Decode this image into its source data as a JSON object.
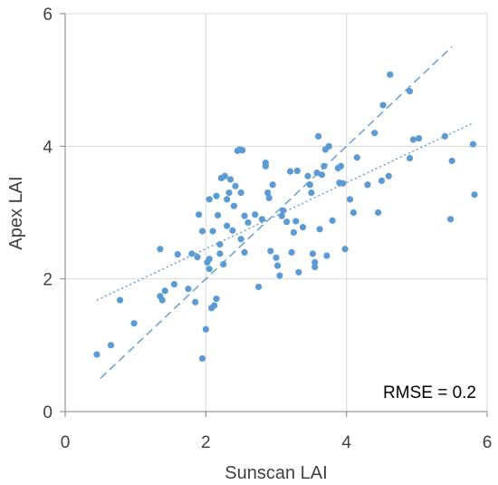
{
  "chart_data": {
    "type": "scatter",
    "xlabel": "Sunscan LAI",
    "ylabel": "Apex LAI",
    "xlim": [
      0,
      6
    ],
    "ylim": [
      0,
      6
    ],
    "xticks": [
      "0",
      "2",
      "4",
      "6"
    ],
    "yticks": [
      "0",
      "2",
      "4",
      "6"
    ],
    "grid": "vertical and horizontal gridlines",
    "annotation": "RMSE = 0.2",
    "colors": {
      "points": "#5b9bd5",
      "grid": "#d9d9d9",
      "axis": "#808080"
    },
    "lines": [
      {
        "style": "dashed",
        "x": [
          0.5,
          5.5
        ],
        "y": [
          0.5,
          5.5
        ]
      },
      {
        "style": "dotted",
        "x": [
          0.45,
          5.8
        ],
        "y": [
          1.68,
          4.35
        ]
      }
    ],
    "points": [
      [
        0.45,
        0.86
      ],
      [
        0.65,
        1.0
      ],
      [
        0.78,
        1.68
      ],
      [
        0.98,
        1.33
      ],
      [
        1.35,
        2.45
      ],
      [
        1.35,
        1.74
      ],
      [
        1.38,
        1.68
      ],
      [
        1.42,
        1.82
      ],
      [
        1.55,
        1.92
      ],
      [
        1.6,
        2.37
      ],
      [
        1.75,
        1.85
      ],
      [
        1.8,
        2.38
      ],
      [
        1.85,
        1.65
      ],
      [
        1.88,
        2.33
      ],
      [
        1.9,
        2.97
      ],
      [
        1.95,
        0.8
      ],
      [
        1.95,
        2.72
      ],
      [
        2.0,
        1.24
      ],
      [
        2.02,
        2.25
      ],
      [
        2.05,
        2.15
      ],
      [
        2.05,
        2.3
      ],
      [
        2.05,
        3.2
      ],
      [
        2.08,
        1.56
      ],
      [
        2.1,
        2.72
      ],
      [
        2.12,
        1.6
      ],
      [
        2.15,
        1.7
      ],
      [
        2.15,
        3.25
      ],
      [
        2.17,
        2.96
      ],
      [
        2.2,
        2.38
      ],
      [
        2.2,
        2.52
      ],
      [
        2.22,
        3.52
      ],
      [
        2.25,
        2.22
      ],
      [
        2.27,
        3.55
      ],
      [
        2.3,
        2.8
      ],
      [
        2.3,
        3.2
      ],
      [
        2.33,
        3.3
      ],
      [
        2.35,
        3.5
      ],
      [
        2.38,
        2.73
      ],
      [
        2.4,
        3.1
      ],
      [
        2.42,
        3.4
      ],
      [
        2.45,
        3.93
      ],
      [
        2.48,
        3.95
      ],
      [
        2.5,
        3.3
      ],
      [
        2.5,
        2.6
      ],
      [
        2.52,
        3.94
      ],
      [
        2.55,
        2.95
      ],
      [
        2.55,
        2.4
      ],
      [
        2.6,
        2.85
      ],
      [
        2.7,
        2.97
      ],
      [
        2.75,
        1.88
      ],
      [
        2.8,
        2.9
      ],
      [
        2.85,
        3.75
      ],
      [
        2.85,
        3.7
      ],
      [
        2.88,
        3.3
      ],
      [
        2.9,
        3.22
      ],
      [
        2.92,
        2.42
      ],
      [
        2.95,
        3.42
      ],
      [
        3.0,
        2.32
      ],
      [
        3.02,
        2.2
      ],
      [
        3.05,
        2.05
      ],
      [
        3.08,
        2.95
      ],
      [
        3.1,
        3.03
      ],
      [
        3.15,
        2.86
      ],
      [
        3.2,
        3.62
      ],
      [
        3.22,
        2.4
      ],
      [
        3.25,
        2.7
      ],
      [
        3.28,
        2.87
      ],
      [
        3.3,
        3.63
      ],
      [
        3.32,
        2.1
      ],
      [
        3.38,
        2.78
      ],
      [
        3.45,
        3.55
      ],
      [
        3.48,
        3.42
      ],
      [
        3.5,
        3.3
      ],
      [
        3.52,
        2.38
      ],
      [
        3.55,
        2.25
      ],
      [
        3.55,
        2.18
      ],
      [
        3.58,
        3.6
      ],
      [
        3.6,
        4.15
      ],
      [
        3.62,
        2.75
      ],
      [
        3.65,
        3.57
      ],
      [
        3.68,
        3.7
      ],
      [
        3.7,
        3.95
      ],
      [
        3.72,
        2.35
      ],
      [
        3.75,
        4.0
      ],
      [
        3.8,
        2.88
      ],
      [
        3.88,
        3.67
      ],
      [
        3.9,
        3.45
      ],
      [
        3.92,
        3.7
      ],
      [
        3.95,
        3.44
      ],
      [
        3.98,
        2.45
      ],
      [
        4.05,
        3.2
      ],
      [
        4.1,
        3.0
      ],
      [
        4.15,
        3.83
      ],
      [
        4.3,
        3.42
      ],
      [
        4.4,
        4.2
      ],
      [
        4.45,
        3.0
      ],
      [
        4.5,
        3.48
      ],
      [
        4.52,
        4.62
      ],
      [
        4.6,
        3.55
      ],
      [
        4.62,
        5.08
      ],
      [
        4.9,
        4.83
      ],
      [
        4.9,
        3.82
      ],
      [
        4.95,
        4.1
      ],
      [
        5.03,
        4.12
      ],
      [
        5.4,
        4.15
      ],
      [
        5.48,
        2.9
      ],
      [
        5.5,
        3.78
      ],
      [
        5.8,
        4.03
      ],
      [
        5.82,
        3.27
      ]
    ]
  }
}
